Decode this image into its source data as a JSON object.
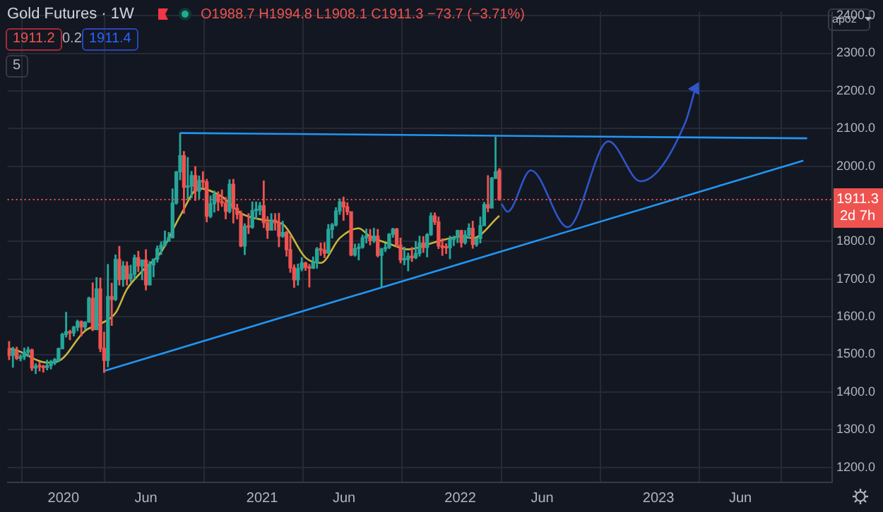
{
  "chart_data": {
    "type": "candlestick",
    "title": "Gold Futures · 1W",
    "annotations": [
      "O1988.7 H1994.8 L1908.1 C1911.3 −73.7 (−3.71%)",
      "1911.2",
      "0.2",
      "1911.4",
      "5",
      "apoz",
      "2d 7h"
    ],
    "x": [
      "2019-09-23",
      "2019-09-30",
      "2019-10-07",
      "2019-10-14",
      "2019-10-21",
      "2019-10-28",
      "2019-11-04",
      "2019-11-11",
      "2019-11-18",
      "2019-11-25",
      "2019-12-02",
      "2019-12-09",
      "2019-12-16",
      "2019-12-23",
      "2019-12-30",
      "2020-01-06",
      "2020-01-13",
      "2020-01-20",
      "2020-01-27",
      "2020-02-03",
      "2020-02-10",
      "2020-02-17",
      "2020-02-24",
      "2020-03-02",
      "2020-03-09",
      "2020-03-16",
      "2020-03-23",
      "2020-03-30",
      "2020-04-06",
      "2020-04-13",
      "2020-04-20",
      "2020-04-27",
      "2020-05-04",
      "2020-05-11",
      "2020-05-18",
      "2020-05-25",
      "2020-06-01",
      "2020-06-08",
      "2020-06-15",
      "2020-06-22",
      "2020-06-29",
      "2020-07-06",
      "2020-07-13",
      "2020-07-20",
      "2020-07-27",
      "2020-08-03",
      "2020-08-10",
      "2020-08-17",
      "2020-08-24",
      "2020-08-31",
      "2020-09-07",
      "2020-09-14",
      "2020-09-21",
      "2020-09-28",
      "2020-10-05",
      "2020-10-12",
      "2020-10-19",
      "2020-10-26",
      "2020-11-02",
      "2020-11-09",
      "2020-11-16",
      "2020-11-23",
      "2020-11-30",
      "2020-12-07",
      "2020-12-14",
      "2020-12-21",
      "2020-12-28",
      "2021-01-04",
      "2021-01-11",
      "2021-01-18",
      "2021-01-25",
      "2021-02-01",
      "2021-02-08",
      "2021-02-15",
      "2021-02-22",
      "2021-03-01",
      "2021-03-08",
      "2021-03-15",
      "2021-03-22",
      "2021-03-29",
      "2021-04-05",
      "2021-04-12",
      "2021-04-19",
      "2021-04-26",
      "2021-05-03",
      "2021-05-10",
      "2021-05-17",
      "2021-05-24",
      "2021-05-31",
      "2021-06-07",
      "2021-06-14",
      "2021-06-21",
      "2021-06-28",
      "2021-07-05",
      "2021-07-12",
      "2021-07-19",
      "2021-07-26",
      "2021-08-02",
      "2021-08-09",
      "2021-08-16",
      "2021-08-23",
      "2021-08-30",
      "2021-09-06",
      "2021-09-13",
      "2021-09-20",
      "2021-09-27",
      "2021-10-04",
      "2021-10-11",
      "2021-10-18",
      "2021-10-25",
      "2021-11-01",
      "2021-11-08",
      "2021-11-15",
      "2021-11-22",
      "2021-11-29",
      "2021-12-06",
      "2021-12-13",
      "2021-12-20",
      "2021-12-27",
      "2022-01-03",
      "2022-01-10",
      "2022-01-17",
      "2022-01-24",
      "2022-01-31",
      "2022-02-07",
      "2022-02-14",
      "2022-02-21",
      "2022-02-28",
      "2022-03-07",
      "2022-03-14"
    ],
    "ohlc": [
      [
        1515,
        1535,
        1485,
        1497
      ],
      [
        1497,
        1520,
        1465,
        1512
      ],
      [
        1512,
        1520,
        1485,
        1489
      ],
      [
        1489,
        1500,
        1482,
        1494
      ],
      [
        1494,
        1518,
        1485,
        1506
      ],
      [
        1506,
        1520,
        1493,
        1512
      ],
      [
        1512,
        1515,
        1456,
        1464
      ],
      [
        1464,
        1476,
        1448,
        1469
      ],
      [
        1469,
        1480,
        1455,
        1467
      ],
      [
        1467,
        1472,
        1452,
        1465
      ],
      [
        1465,
        1486,
        1458,
        1470
      ],
      [
        1470,
        1485,
        1460,
        1481
      ],
      [
        1477,
        1490,
        1472,
        1486
      ],
      [
        1484,
        1518,
        1480,
        1515
      ],
      [
        1515,
        1557,
        1514,
        1553
      ],
      [
        1553,
        1613,
        1545,
        1560
      ],
      [
        1560,
        1565,
        1538,
        1557
      ],
      [
        1557,
        1576,
        1548,
        1572
      ],
      [
        1572,
        1592,
        1562,
        1587
      ],
      [
        1587,
        1590,
        1548,
        1573
      ],
      [
        1573,
        1588,
        1565,
        1586
      ],
      [
        1586,
        1653,
        1584,
        1649
      ],
      [
        1649,
        1691,
        1562,
        1566
      ],
      [
        1566,
        1705,
        1564,
        1674
      ],
      [
        1674,
        1704,
        1506,
        1516
      ],
      [
        1516,
        1560,
        1451,
        1484
      ],
      [
        1484,
        1740,
        1466,
        1654
      ],
      [
        1654,
        1690,
        1576,
        1646
      ],
      [
        1646,
        1765,
        1642,
        1752
      ],
      [
        1752,
        1788,
        1683,
        1699
      ],
      [
        1699,
        1748,
        1680,
        1735
      ],
      [
        1735,
        1747,
        1683,
        1701
      ],
      [
        1701,
        1738,
        1692,
        1713
      ],
      [
        1713,
        1765,
        1700,
        1757
      ],
      [
        1757,
        1775,
        1719,
        1735
      ],
      [
        1735,
        1752,
        1697,
        1751
      ],
      [
        1751,
        1779,
        1670,
        1685
      ],
      [
        1685,
        1748,
        1683,
        1738
      ],
      [
        1738,
        1753,
        1705,
        1753
      ],
      [
        1753,
        1789,
        1744,
        1781
      ],
      [
        1781,
        1800,
        1764,
        1790
      ],
      [
        1790,
        1829,
        1786,
        1801
      ],
      [
        1801,
        1825,
        1799,
        1810
      ],
      [
        1810,
        1941,
        1808,
        1902
      ],
      [
        1902,
        1987,
        1898,
        1985
      ],
      [
        1985,
        2089,
        1963,
        2028
      ],
      [
        2028,
        2040,
        1874,
        1944
      ],
      [
        1944,
        2024,
        1911,
        1947
      ],
      [
        1947,
        1987,
        1915,
        1975
      ],
      [
        1975,
        2000,
        1908,
        1934
      ],
      [
        1934,
        1975,
        1913,
        1962
      ],
      [
        1962,
        1986,
        1940,
        1958
      ],
      [
        1958,
        1966,
        1851,
        1867
      ],
      [
        1867,
        1922,
        1862,
        1900
      ],
      [
        1900,
        1935,
        1877,
        1925
      ],
      [
        1925,
        1933,
        1881,
        1906
      ],
      [
        1906,
        1938,
        1892,
        1902
      ],
      [
        1902,
        1918,
        1859,
        1880
      ],
      [
        1880,
        1965,
        1875,
        1952
      ],
      [
        1952,
        1966,
        1848,
        1888
      ],
      [
        1888,
        1900,
        1859,
        1872
      ],
      [
        1872,
        1882,
        1785,
        1788
      ],
      [
        1788,
        1848,
        1764,
        1840
      ],
      [
        1840,
        1875,
        1820,
        1838
      ],
      [
        1838,
        1906,
        1834,
        1882
      ],
      [
        1882,
        1906,
        1859,
        1883
      ],
      [
        1883,
        1905,
        1870,
        1895
      ],
      [
        1895,
        1962,
        1836,
        1850
      ],
      [
        1850,
        1867,
        1807,
        1830
      ],
      [
        1830,
        1875,
        1829,
        1857
      ],
      [
        1857,
        1875,
        1829,
        1850
      ],
      [
        1850,
        1876,
        1785,
        1814
      ],
      [
        1814,
        1855,
        1810,
        1824
      ],
      [
        1824,
        1828,
        1760,
        1778
      ],
      [
        1778,
        1816,
        1717,
        1730
      ],
      [
        1730,
        1739,
        1677,
        1698
      ],
      [
        1698,
        1741,
        1683,
        1728
      ],
      [
        1728,
        1758,
        1721,
        1743
      ],
      [
        1743,
        1746,
        1722,
        1731
      ],
      [
        1731,
        1740,
        1678,
        1729
      ],
      [
        1729,
        1760,
        1727,
        1744
      ],
      [
        1744,
        1785,
        1728,
        1780
      ],
      [
        1780,
        1797,
        1762,
        1777
      ],
      [
        1777,
        1798,
        1756,
        1769
      ],
      [
        1769,
        1846,
        1767,
        1832
      ],
      [
        1832,
        1849,
        1808,
        1844
      ],
      [
        1844,
        1891,
        1840,
        1881
      ],
      [
        1881,
        1914,
        1871,
        1905
      ],
      [
        1905,
        1919,
        1855,
        1892
      ],
      [
        1892,
        1904,
        1870,
        1879
      ],
      [
        1879,
        1879,
        1761,
        1764
      ],
      [
        1764,
        1794,
        1760,
        1781
      ],
      [
        1781,
        1795,
        1750,
        1785
      ],
      [
        1785,
        1818,
        1781,
        1810
      ],
      [
        1810,
        1834,
        1795,
        1815
      ],
      [
        1815,
        1833,
        1790,
        1802
      ],
      [
        1802,
        1836,
        1796,
        1814
      ],
      [
        1814,
        1833,
        1758,
        1763
      ],
      [
        1763,
        1783,
        1678,
        1780
      ],
      [
        1780,
        1795,
        1772,
        1784
      ],
      [
        1784,
        1822,
        1780,
        1819
      ],
      [
        1819,
        1836,
        1810,
        1833
      ],
      [
        1833,
        1836,
        1785,
        1790
      ],
      [
        1790,
        1810,
        1742,
        1751
      ],
      [
        1751,
        1786,
        1737,
        1752
      ],
      [
        1752,
        1770,
        1721,
        1761
      ],
      [
        1761,
        1785,
        1746,
        1757
      ],
      [
        1757,
        1801,
        1753,
        1768
      ],
      [
        1768,
        1815,
        1760,
        1796
      ],
      [
        1796,
        1814,
        1770,
        1784
      ],
      [
        1784,
        1822,
        1758,
        1818
      ],
      [
        1818,
        1877,
        1815,
        1868
      ],
      [
        1868,
        1877,
        1844,
        1852
      ],
      [
        1852,
        1866,
        1780,
        1788
      ],
      [
        1788,
        1808,
        1762,
        1784
      ],
      [
        1784,
        1795,
        1767,
        1783
      ],
      [
        1783,
        1815,
        1753,
        1805
      ],
      [
        1805,
        1815,
        1788,
        1811
      ],
      [
        1811,
        1831,
        1796,
        1829
      ],
      [
        1829,
        1831,
        1784,
        1797
      ],
      [
        1797,
        1830,
        1792,
        1817
      ],
      [
        1817,
        1848,
        1807,
        1835
      ],
      [
        1835,
        1855,
        1781,
        1792
      ],
      [
        1792,
        1810,
        1786,
        1808
      ],
      [
        1808,
        1866,
        1795,
        1842
      ],
      [
        1842,
        1905,
        1842,
        1898
      ],
      [
        1898,
        1976,
        1878,
        1889
      ],
      [
        1889,
        1971,
        1888,
        1968
      ],
      [
        1968,
        2078,
        1966,
        1985
      ],
      [
        1988.7,
        1994.8,
        1908.1,
        1911.3
      ]
    ],
    "colors": [
      "#ef5350",
      "#26a69a",
      "#ef5350",
      "#26a69a",
      "#26a69a",
      "#26a69a",
      "#ef5350",
      "#26a69a",
      "#ef5350",
      "#ef5350",
      "#26a69a",
      "#26a69a",
      "#26a69a",
      "#26a69a",
      "#26a69a",
      "#26a69a",
      "#ef5350",
      "#26a69a",
      "#26a69a",
      "#ef5350",
      "#26a69a",
      "#26a69a",
      "#ef5350",
      "#26a69a",
      "#ef5350",
      "#ef5350",
      "#26a69a",
      "#ef5350",
      "#26a69a",
      "#ef5350",
      "#26a69a",
      "#ef5350",
      "#26a69a",
      "#26a69a",
      "#ef5350",
      "#26a69a",
      "#ef5350",
      "#26a69a",
      "#26a69a",
      "#26a69a",
      "#26a69a",
      "#26a69a",
      "#26a69a",
      "#26a69a",
      "#26a69a",
      "#26a69a",
      "#ef5350",
      "#26a69a",
      "#26a69a",
      "#ef5350",
      "#26a69a",
      "#ef5350",
      "#ef5350",
      "#26a69a",
      "#26a69a",
      "#ef5350",
      "#ef5350",
      "#ef5350",
      "#26a69a",
      "#ef5350",
      "#ef5350",
      "#ef5350",
      "#26a69a",
      "#ef5350",
      "#26a69a",
      "#26a69a",
      "#26a69a",
      "#ef5350",
      "#ef5350",
      "#26a69a",
      "#ef5350",
      "#ef5350",
      "#26a69a",
      "#ef5350",
      "#ef5350",
      "#ef5350",
      "#26a69a",
      "#26a69a",
      "#ef5350",
      "#ef5350",
      "#26a69a",
      "#26a69a",
      "#ef5350",
      "#ef5350",
      "#26a69a",
      "#26a69a",
      "#26a69a",
      "#26a69a",
      "#ef5350",
      "#ef5350",
      "#ef5350",
      "#26a69a",
      "#26a69a",
      "#26a69a",
      "#26a69a",
      "#ef5350",
      "#26a69a",
      "#ef5350",
      "#26a69a",
      "#26a69a",
      "#26a69a",
      "#26a69a",
      "#ef5350",
      "#ef5350",
      "#26a69a",
      "#26a69a",
      "#ef5350",
      "#26a69a",
      "#26a69a",
      "#ef5350",
      "#26a69a",
      "#26a69a",
      "#ef5350",
      "#ef5350",
      "#ef5350",
      "#ef5350",
      "#26a69a",
      "#26a69a",
      "#26a69a",
      "#ef5350",
      "#26a69a",
      "#26a69a",
      "#ef5350",
      "#26a69a",
      "#26a69a",
      "#26a69a",
      "#ef5350",
      "#26a69a",
      "#26a69a",
      "#ef5350"
    ],
    "series": [
      {
        "type": "line",
        "color": "#c8b53c",
        "x": [
          "2019-09-23",
          "2019-10-07",
          "2019-12-02",
          "2019-12-23",
          "2020-02-10",
          "2020-03-09",
          "2020-04-06",
          "2020-04-27",
          "2020-05-25",
          "2020-06-29",
          "2020-08-03",
          "2020-09-07",
          "2020-10-19",
          "2020-11-23",
          "2021-01-04",
          "2021-02-08",
          "2021-03-22",
          "2021-04-19",
          "2021-05-24",
          "2021-06-28",
          "2021-07-19",
          "2021-08-23",
          "2021-09-27",
          "2021-11-15",
          "2022-01-03",
          "2022-01-24",
          "2022-03-14"
        ],
        "values": [
          1515,
          1511,
          1478,
          1482,
          1563,
          1581,
          1610,
          1673,
          1721,
          1772,
          1868,
          1941,
          1919,
          1875,
          1857,
          1846,
          1757,
          1743,
          1809,
          1835,
          1813,
          1794,
          1779,
          1798,
          1813,
          1809,
          1868
        ]
      },
      {
        "type": "line",
        "color": "#2196f3",
        "x": [
          "2020-08-03",
          "2023-10-02"
        ],
        "values": [
          2088,
          2074
        ]
      },
      {
        "type": "line",
        "color": "#2196f3",
        "x": [
          "2020-03-16",
          "2023-09-25"
        ],
        "values": [
          1456,
          2015
        ]
      },
      {
        "type": "line",
        "color": "#2f55c8",
        "x": [
          "2022-03-18",
          "2022-03-29",
          "2022-05-11",
          "2022-07-18",
          "2022-10-01",
          "2022-11-29",
          "2023-02-19",
          "2023-03-10"
        ],
        "values": [
          1900,
          1879,
          1989,
          1838,
          2066,
          1960,
          2114,
          2206
        ]
      }
    ],
    "xlim": [
      "2019-09-20",
      "2023-11-17"
    ],
    "xticks": [
      {
        "value": "2020-01-01",
        "label": "2020"
      },
      {
        "value": "2020-06-01",
        "label": "Jun"
      },
      {
        "value": "2021-01-01",
        "label": "2021"
      },
      {
        "value": "2021-06-01",
        "label": "Jun"
      },
      {
        "value": "2022-01-01",
        "label": "2022"
      },
      {
        "value": "2022-06-01",
        "label": "Jun"
      },
      {
        "value": "2023-01-01",
        "label": "2023"
      },
      {
        "value": "2023-06-01",
        "label": "Jun"
      }
    ],
    "ylim": [
      1160,
      2410
    ],
    "yticks": [
      {
        "value": 1200,
        "label": "1200.0"
      },
      {
        "value": 1300,
        "label": "1300.0"
      },
      {
        "value": 1400,
        "label": "1400.0"
      },
      {
        "value": 1500,
        "label": "1500.0"
      },
      {
        "value": 1600,
        "label": "1600.0"
      },
      {
        "value": 1700,
        "label": "1700.0"
      },
      {
        "value": 1800,
        "label": "1800.0"
      },
      {
        "value": 2000,
        "label": "2000.0"
      },
      {
        "value": 2100,
        "label": "2100.0"
      },
      {
        "value": 2200,
        "label": "2200.0"
      },
      {
        "value": 2300,
        "label": "2300.0"
      },
      {
        "value": 2400,
        "label": "2400.0"
      }
    ],
    "ref_lines": [
      {
        "axis": "y",
        "value": 1911.3,
        "label": "1911.3",
        "color": "#ef5350",
        "line_style": "dotted"
      }
    ],
    "grid": true,
    "legend": false,
    "marker": "none",
    "line_style": "solid"
  }
}
